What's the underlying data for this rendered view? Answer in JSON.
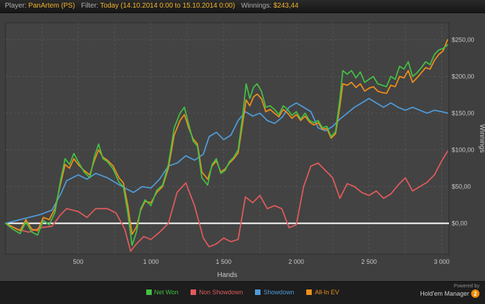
{
  "topbar": {
    "player_label": "Player:",
    "player_value": "PanArtem (PS)",
    "filter_label": "Filter:",
    "filter_value": "Today (14.10.2014 0:00 to 15.10.2014 0:00)",
    "winnings_label": "Winnings:",
    "winnings_value": "$243,44"
  },
  "footer": {
    "powered_by": "Powered by",
    "brand": "Hold'em Manager",
    "badge": "2"
  },
  "chart_data": {
    "type": "line",
    "title": "",
    "xlabel": "Hands",
    "ylabel": "Winnings",
    "xlim": [
      0,
      3050
    ],
    "ylim": [
      -42,
      273
    ],
    "grid": true,
    "legend_position": "bottom",
    "zero_line_color": "#ffffff",
    "x_tick_values": [
      500,
      1000,
      1500,
      2000,
      2500,
      3000
    ],
    "x_tick_labels": [
      "500",
      "1 000",
      "1 500",
      "2 000",
      "2 500",
      "3 000"
    ],
    "y_tick_values": [
      0,
      50,
      100,
      150,
      200,
      250
    ],
    "y_tick_labels": [
      "$0,00",
      "$50,00",
      "$100,00",
      "$150,00",
      "$200,00",
      "$250,00"
    ],
    "series": [
      {
        "name": "Net Won",
        "color": "#43c043",
        "points": [
          [
            0,
            0
          ],
          [
            50,
            -8
          ],
          [
            100,
            -14
          ],
          [
            140,
            2
          ],
          [
            180,
            -12
          ],
          [
            220,
            -16
          ],
          [
            260,
            4
          ],
          [
            300,
            -2
          ],
          [
            340,
            15
          ],
          [
            380,
            60
          ],
          [
            410,
            88
          ],
          [
            440,
            80
          ],
          [
            470,
            95
          ],
          [
            500,
            84
          ],
          [
            540,
            70
          ],
          [
            580,
            62
          ],
          [
            610,
            90
          ],
          [
            640,
            108
          ],
          [
            670,
            88
          ],
          [
            700,
            84
          ],
          [
            740,
            74
          ],
          [
            780,
            56
          ],
          [
            810,
            50
          ],
          [
            840,
            15
          ],
          [
            870,
            -30
          ],
          [
            900,
            -12
          ],
          [
            930,
            20
          ],
          [
            960,
            32
          ],
          [
            1000,
            24
          ],
          [
            1040,
            45
          ],
          [
            1080,
            52
          ],
          [
            1120,
            80
          ],
          [
            1160,
            130
          ],
          [
            1200,
            150
          ],
          [
            1230,
            158
          ],
          [
            1260,
            135
          ],
          [
            1290,
            112
          ],
          [
            1320,
            105
          ],
          [
            1350,
            62
          ],
          [
            1390,
            52
          ],
          [
            1420,
            80
          ],
          [
            1450,
            88
          ],
          [
            1480,
            68
          ],
          [
            1510,
            72
          ],
          [
            1540,
            84
          ],
          [
            1570,
            90
          ],
          [
            1600,
            100
          ],
          [
            1630,
            145
          ],
          [
            1655,
            190
          ],
          [
            1680,
            170
          ],
          [
            1705,
            185
          ],
          [
            1730,
            190
          ],
          [
            1760,
            180
          ],
          [
            1790,
            158
          ],
          [
            1820,
            160
          ],
          [
            1850,
            155
          ],
          [
            1880,
            148
          ],
          [
            1910,
            160
          ],
          [
            1940,
            155
          ],
          [
            1970,
            147
          ],
          [
            2000,
            152
          ],
          [
            2030,
            142
          ],
          [
            2060,
            150
          ],
          [
            2090,
            140
          ],
          [
            2120,
            137
          ],
          [
            2150,
            140
          ],
          [
            2180,
            130
          ],
          [
            2210,
            132
          ],
          [
            2240,
            118
          ],
          [
            2270,
            125
          ],
          [
            2300,
            170
          ],
          [
            2320,
            208
          ],
          [
            2350,
            203
          ],
          [
            2380,
            208
          ],
          [
            2410,
            198
          ],
          [
            2440,
            206
          ],
          [
            2470,
            192
          ],
          [
            2500,
            196
          ],
          [
            2530,
            200
          ],
          [
            2560,
            190
          ],
          [
            2590,
            188
          ],
          [
            2620,
            186
          ],
          [
            2650,
            200
          ],
          [
            2680,
            196
          ],
          [
            2710,
            214
          ],
          [
            2740,
            210
          ],
          [
            2770,
            220
          ],
          [
            2800,
            200
          ],
          [
            2830,
            205
          ],
          [
            2860,
            212
          ],
          [
            2890,
            220
          ],
          [
            2920,
            216
          ],
          [
            2950,
            230
          ],
          [
            2980,
            236
          ],
          [
            3010,
            238
          ],
          [
            3040,
            243
          ]
        ]
      },
      {
        "name": "Non Showdown",
        "color": "#e05b5b",
        "points": [
          [
            0,
            0
          ],
          [
            80,
            -8
          ],
          [
            160,
            -12
          ],
          [
            240,
            -6
          ],
          [
            320,
            -4
          ],
          [
            380,
            12
          ],
          [
            420,
            20
          ],
          [
            500,
            16
          ],
          [
            560,
            8
          ],
          [
            620,
            20
          ],
          [
            700,
            20
          ],
          [
            760,
            14
          ],
          [
            820,
            -8
          ],
          [
            860,
            -38
          ],
          [
            900,
            -28
          ],
          [
            950,
            -18
          ],
          [
            1000,
            -22
          ],
          [
            1060,
            -12
          ],
          [
            1120,
            0
          ],
          [
            1180,
            42
          ],
          [
            1240,
            55
          ],
          [
            1300,
            24
          ],
          [
            1360,
            -20
          ],
          [
            1400,
            -32
          ],
          [
            1450,
            -28
          ],
          [
            1500,
            -20
          ],
          [
            1550,
            -25
          ],
          [
            1600,
            -22
          ],
          [
            1650,
            36
          ],
          [
            1700,
            28
          ],
          [
            1750,
            38
          ],
          [
            1800,
            20
          ],
          [
            1850,
            24
          ],
          [
            1900,
            20
          ],
          [
            1950,
            -6
          ],
          [
            2000,
            -2
          ],
          [
            2050,
            50
          ],
          [
            2100,
            78
          ],
          [
            2150,
            82
          ],
          [
            2200,
            72
          ],
          [
            2250,
            62
          ],
          [
            2300,
            34
          ],
          [
            2350,
            54
          ],
          [
            2400,
            50
          ],
          [
            2450,
            42
          ],
          [
            2500,
            38
          ],
          [
            2550,
            44
          ],
          [
            2600,
            34
          ],
          [
            2650,
            40
          ],
          [
            2700,
            52
          ],
          [
            2750,
            62
          ],
          [
            2800,
            44
          ],
          [
            2850,
            50
          ],
          [
            2900,
            56
          ],
          [
            2950,
            66
          ],
          [
            3000,
            85
          ],
          [
            3040,
            98
          ]
        ]
      },
      {
        "name": "Showdown",
        "color": "#4f9bd9",
        "points": [
          [
            0,
            0
          ],
          [
            80,
            4
          ],
          [
            160,
            8
          ],
          [
            240,
            12
          ],
          [
            320,
            18
          ],
          [
            380,
            40
          ],
          [
            420,
            58
          ],
          [
            500,
            66
          ],
          [
            560,
            60
          ],
          [
            620,
            68
          ],
          [
            700,
            62
          ],
          [
            760,
            55
          ],
          [
            820,
            48
          ],
          [
            880,
            42
          ],
          [
            940,
            50
          ],
          [
            1000,
            48
          ],
          [
            1060,
            60
          ],
          [
            1120,
            78
          ],
          [
            1180,
            82
          ],
          [
            1240,
            92
          ],
          [
            1300,
            86
          ],
          [
            1360,
            94
          ],
          [
            1400,
            118
          ],
          [
            1450,
            124
          ],
          [
            1500,
            114
          ],
          [
            1550,
            120
          ],
          [
            1600,
            140
          ],
          [
            1650,
            152
          ],
          [
            1700,
            146
          ],
          [
            1750,
            150
          ],
          [
            1800,
            140
          ],
          [
            1850,
            136
          ],
          [
            1900,
            144
          ],
          [
            1950,
            158
          ],
          [
            2000,
            164
          ],
          [
            2050,
            158
          ],
          [
            2100,
            152
          ],
          [
            2150,
            130
          ],
          [
            2200,
            126
          ],
          [
            2250,
            132
          ],
          [
            2300,
            142
          ],
          [
            2350,
            150
          ],
          [
            2400,
            158
          ],
          [
            2450,
            164
          ],
          [
            2500,
            170
          ],
          [
            2550,
            164
          ],
          [
            2600,
            158
          ],
          [
            2650,
            164
          ],
          [
            2700,
            158
          ],
          [
            2750,
            154
          ],
          [
            2800,
            158
          ],
          [
            2850,
            154
          ],
          [
            2900,
            150
          ],
          [
            2950,
            154
          ],
          [
            3000,
            152
          ],
          [
            3040,
            150
          ]
        ]
      },
      {
        "name": "All-In EV",
        "color": "#ef8e1b",
        "points": [
          [
            0,
            0
          ],
          [
            50,
            -5
          ],
          [
            100,
            -10
          ],
          [
            140,
            5
          ],
          [
            180,
            -8
          ],
          [
            220,
            -10
          ],
          [
            260,
            8
          ],
          [
            300,
            5
          ],
          [
            340,
            20
          ],
          [
            380,
            55
          ],
          [
            410,
            80
          ],
          [
            440,
            75
          ],
          [
            470,
            88
          ],
          [
            500,
            80
          ],
          [
            540,
            72
          ],
          [
            580,
            66
          ],
          [
            610,
            85
          ],
          [
            640,
            100
          ],
          [
            670,
            90
          ],
          [
            700,
            86
          ],
          [
            740,
            78
          ],
          [
            780,
            62
          ],
          [
            810,
            55
          ],
          [
            840,
            25
          ],
          [
            870,
            -15
          ],
          [
            900,
            -5
          ],
          [
            930,
            18
          ],
          [
            960,
            30
          ],
          [
            1000,
            28
          ],
          [
            1040,
            42
          ],
          [
            1080,
            50
          ],
          [
            1120,
            75
          ],
          [
            1160,
            120
          ],
          [
            1200,
            140
          ],
          [
            1230,
            148
          ],
          [
            1260,
            130
          ],
          [
            1290,
            115
          ],
          [
            1320,
            108
          ],
          [
            1350,
            70
          ],
          [
            1390,
            60
          ],
          [
            1420,
            78
          ],
          [
            1450,
            85
          ],
          [
            1480,
            70
          ],
          [
            1510,
            74
          ],
          [
            1540,
            82
          ],
          [
            1570,
            88
          ],
          [
            1600,
            96
          ],
          [
            1630,
            135
          ],
          [
            1655,
            168
          ],
          [
            1680,
            160
          ],
          [
            1705,
            172
          ],
          [
            1730,
            176
          ],
          [
            1760,
            170
          ],
          [
            1790,
            152
          ],
          [
            1820,
            155
          ],
          [
            1850,
            150
          ],
          [
            1880,
            145
          ],
          [
            1910,
            155
          ],
          [
            1940,
            150
          ],
          [
            1970,
            143
          ],
          [
            2000,
            148
          ],
          [
            2030,
            140
          ],
          [
            2060,
            146
          ],
          [
            2090,
            138
          ],
          [
            2120,
            134
          ],
          [
            2150,
            137
          ],
          [
            2180,
            128
          ],
          [
            2210,
            129
          ],
          [
            2240,
            116
          ],
          [
            2270,
            122
          ],
          [
            2300,
            160
          ],
          [
            2320,
            190
          ],
          [
            2350,
            188
          ],
          [
            2380,
            192
          ],
          [
            2410,
            185
          ],
          [
            2440,
            190
          ],
          [
            2470,
            180
          ],
          [
            2500,
            184
          ],
          [
            2530,
            186
          ],
          [
            2560,
            180
          ],
          [
            2590,
            178
          ],
          [
            2620,
            177
          ],
          [
            2650,
            188
          ],
          [
            2680,
            186
          ],
          [
            2710,
            200
          ],
          [
            2740,
            198
          ],
          [
            2770,
            208
          ],
          [
            2800,
            192
          ],
          [
            2830,
            198
          ],
          [
            2860,
            205
          ],
          [
            2890,
            212
          ],
          [
            2920,
            210
          ],
          [
            2950,
            222
          ],
          [
            2980,
            230
          ],
          [
            3010,
            235
          ],
          [
            3040,
            250
          ]
        ]
      }
    ]
  }
}
